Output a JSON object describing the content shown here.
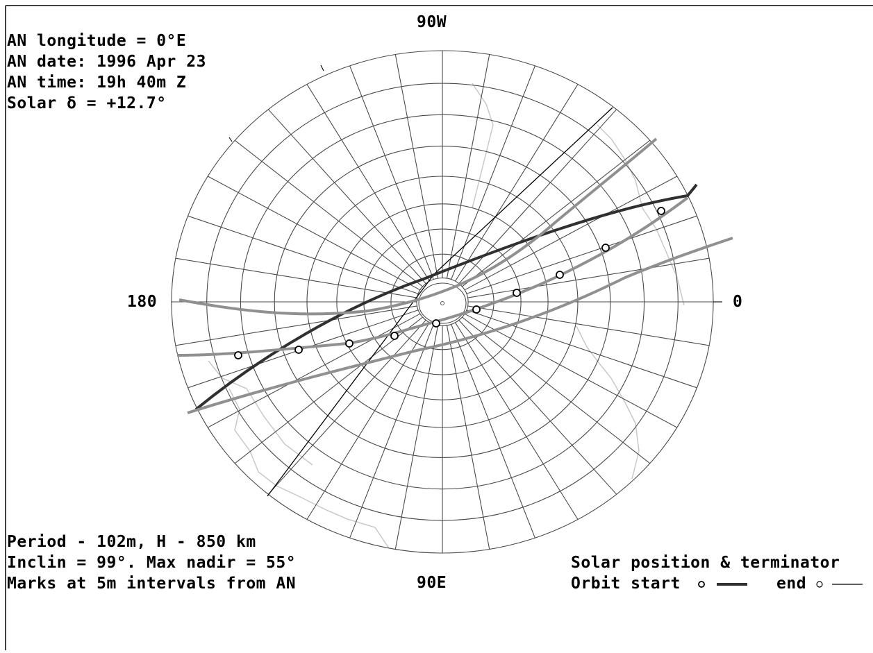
{
  "header": {
    "an_longitude": "AN longitude = 0°E",
    "an_date": "AN date: 1996 Apr 23",
    "an_time": "AN time: 19h 40m Z",
    "solar_decl": "Solar δ = +12.7°"
  },
  "axis_labels": {
    "top": "90W",
    "bottom": "90E",
    "left": "180",
    "right": "0"
  },
  "footer": {
    "period": "Period - 102m, H - 850 km",
    "inclination": "Inclin = 99°. Max nadir = 55°",
    "marks": "Marks at 5m intervals from AN"
  },
  "legend": {
    "solar": "Solar position & terminator",
    "orbit_start": "Orbit start",
    "orbit_end": "end"
  },
  "colors": {
    "grid": "#4a4a4a",
    "coast": "#c8c8c8",
    "orbit_start": "#303030",
    "orbit_mid": "#909090",
    "terminator": "#000000"
  }
}
